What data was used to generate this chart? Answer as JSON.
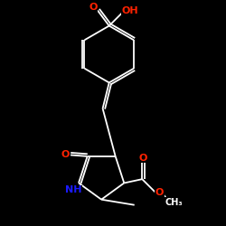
{
  "bg": "#000000",
  "W": "#ffffff",
  "R": "#ff2200",
  "B": "#1a1aff",
  "lw": 1.3,
  "fs": 8.0,
  "sfs": 7.0,
  "fig_w": 2.5,
  "fig_h": 2.5,
  "dpi": 100,
  "xlim": [
    -0.55,
    0.65
  ],
  "ylim": [
    -0.85,
    0.9
  ]
}
